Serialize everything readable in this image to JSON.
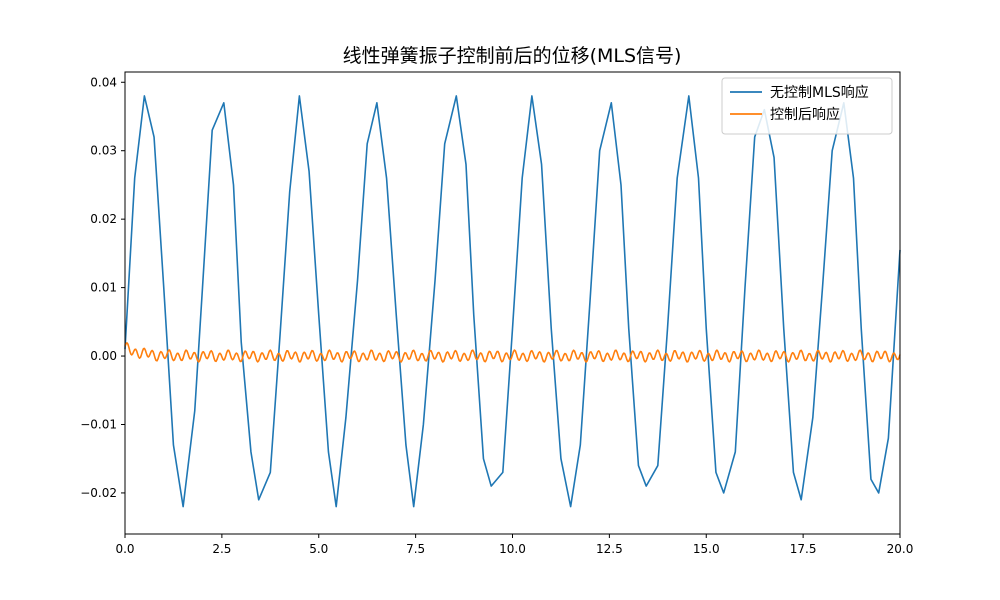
{
  "chart_data": {
    "type": "line",
    "title": "线性弹簧振子控制前后的位移(MLS信号)",
    "xlabel": "",
    "ylabel": "",
    "xlim": [
      0,
      20
    ],
    "ylim": [
      -0.026,
      0.0415
    ],
    "x_ticks": [
      0,
      2.5,
      5,
      7.5,
      10,
      12.5,
      15,
      17.5,
      20
    ],
    "x_tick_labels": [
      "0.0",
      "2.5",
      "5.0",
      "7.5",
      "10.0",
      "12.5",
      "15.0",
      "17.5",
      "20.0"
    ],
    "y_ticks": [
      -0.02,
      -0.01,
      0,
      0.01,
      0.02,
      0.03,
      0.04
    ],
    "y_tick_labels": [
      "−0.02",
      "−0.01",
      "0.00",
      "0.01",
      "0.02",
      "0.03",
      "0.04"
    ],
    "grid": false,
    "legend_position": "top-right",
    "series": [
      {
        "name": "无控制MLS响应",
        "color": "#1f77b4",
        "x": [
          0,
          0.25,
          0.5,
          0.75,
          1.0,
          1.25,
          1.5,
          1.8,
          2.0,
          2.25,
          2.55,
          2.8,
          3.0,
          3.25,
          3.45,
          3.75,
          4.0,
          4.25,
          4.5,
          4.75,
          5.0,
          5.25,
          5.45,
          5.7,
          6.0,
          6.25,
          6.5,
          6.75,
          7.0,
          7.25,
          7.45,
          7.7,
          8.0,
          8.25,
          8.55,
          8.8,
          9.0,
          9.25,
          9.45,
          9.75,
          10.0,
          10.25,
          10.5,
          10.75,
          11.0,
          11.25,
          11.5,
          11.75,
          12.0,
          12.25,
          12.55,
          12.8,
          13.0,
          13.25,
          13.45,
          13.75,
          14.0,
          14.25,
          14.55,
          14.8,
          15.0,
          15.25,
          15.45,
          15.75,
          16.0,
          16.25,
          16.5,
          16.75,
          17.0,
          17.25,
          17.45,
          17.75,
          18.0,
          18.25,
          18.55,
          18.8,
          19.0,
          19.25,
          19.45,
          19.7,
          20.0
        ],
        "y": [
          0.001,
          0.026,
          0.038,
          0.032,
          0.01,
          -0.013,
          -0.022,
          -0.008,
          0.01,
          0.033,
          0.037,
          0.025,
          0.002,
          -0.014,
          -0.021,
          -0.017,
          0.003,
          0.024,
          0.038,
          0.027,
          0.006,
          -0.014,
          -0.022,
          -0.009,
          0.011,
          0.031,
          0.037,
          0.026,
          0.006,
          -0.013,
          -0.022,
          -0.01,
          0.011,
          0.031,
          0.038,
          0.028,
          0.006,
          -0.015,
          -0.019,
          -0.017,
          0.004,
          0.026,
          0.038,
          0.028,
          0.004,
          -0.015,
          -0.022,
          -0.013,
          0.008,
          0.03,
          0.037,
          0.025,
          0.004,
          -0.016,
          -0.019,
          -0.016,
          0.004,
          0.026,
          0.038,
          0.026,
          0.004,
          -0.017,
          -0.02,
          -0.014,
          0.01,
          0.032,
          0.036,
          0.029,
          0.004,
          -0.017,
          -0.021,
          -0.009,
          0.01,
          0.03,
          0.037,
          0.026,
          0.004,
          -0.018,
          -0.02,
          -0.012,
          0.0155
        ]
      },
      {
        "name": "控制后响应",
        "color": "#ff7f0e",
        "amplitude": 0.0007,
        "initial": 0.0012
      }
    ]
  }
}
